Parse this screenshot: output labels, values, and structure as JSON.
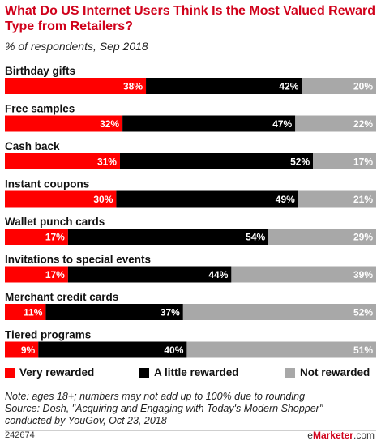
{
  "title": "What Do US Internet Users Think Is the Most Valued Reward Type from Retailers?",
  "subtitle": "% of respondents, Sep 2018",
  "colors": {
    "very": "#ff0000",
    "little": "#000000",
    "not": "#a8a8a8",
    "title": "#d0021b"
  },
  "chart_data": {
    "type": "bar",
    "orientation": "horizontal-stacked-100",
    "categories": [
      "Birthday gifts",
      "Free samples",
      "Cash back",
      "Instant coupons",
      "Wallet punch cards",
      "Invitations to special events",
      "Merchant credit cards",
      "Tiered programs"
    ],
    "series": [
      {
        "name": "Very rewarded",
        "values": [
          38,
          32,
          31,
          30,
          17,
          17,
          11,
          9
        ]
      },
      {
        "name": "A little rewarded",
        "values": [
          42,
          47,
          52,
          49,
          54,
          44,
          37,
          40
        ]
      },
      {
        "name": "Not rewarded",
        "values": [
          20,
          22,
          17,
          21,
          29,
          39,
          52,
          51
        ]
      }
    ],
    "value_suffix": "%"
  },
  "legend": {
    "very": "Very rewarded",
    "little": "A little rewarded",
    "not": "Not rewarded"
  },
  "note_lines": [
    "Note: ages 18+; numbers may not add up to 100% due to rounding",
    "Source: Dosh, \"Acquiring and Engaging with Today's Modern Shopper\"",
    "conducted by YouGov, Oct 23, 2018"
  ],
  "footer": {
    "id": "242674",
    "brand_prefix": "e",
    "brand_name": "Marketer",
    "brand_suffix": ".com"
  }
}
